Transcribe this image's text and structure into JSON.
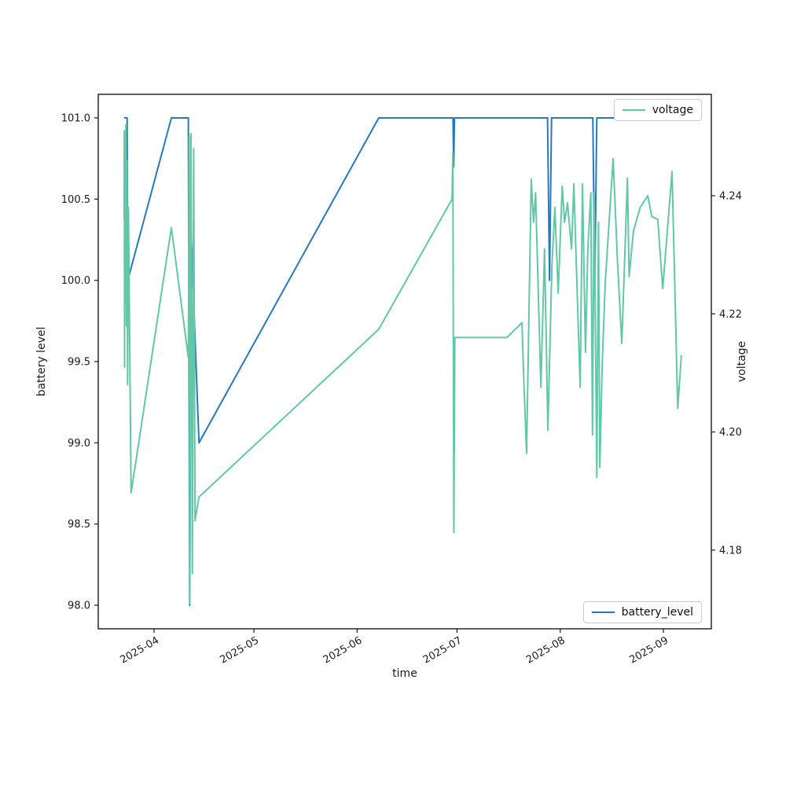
{
  "figure": {
    "kind": "matplotlib-line-figure",
    "background": "#ffffff"
  },
  "axes": {
    "x": {
      "label": "time",
      "min_day": -4.765,
      "max_day": 179.4,
      "ticks": [
        {
          "day": 12,
          "label": "2025-04"
        },
        {
          "day": 42,
          "label": "2025-05"
        },
        {
          "day": 73,
          "label": "2025-06"
        },
        {
          "day": 103,
          "label": "2025-07"
        },
        {
          "day": 134,
          "label": "2025-08"
        },
        {
          "day": 165,
          "label": "2025-09"
        }
      ]
    },
    "y_left": {
      "label": "battery level",
      "min": 97.855,
      "max": 101.145,
      "ticks": [
        {
          "v": 98.0,
          "label": "98.0"
        },
        {
          "v": 98.5,
          "label": "98.5"
        },
        {
          "v": 99.0,
          "label": "99.0"
        },
        {
          "v": 99.5,
          "label": "99.5"
        },
        {
          "v": 100.0,
          "label": "100.0"
        },
        {
          "v": 100.5,
          "label": "100.5"
        },
        {
          "v": 101.0,
          "label": "101.0"
        }
      ]
    },
    "y_right": {
      "label": "voltage",
      "min": 4.16668,
      "max": 4.25717,
      "ticks": [
        {
          "v": 4.18,
          "label": "4.18"
        },
        {
          "v": 4.2,
          "label": "4.20"
        },
        {
          "v": 4.22,
          "label": "4.22"
        },
        {
          "v": 4.24,
          "label": "4.24"
        }
      ]
    }
  },
  "legend_top": {
    "label": "voltage"
  },
  "legend_bottom": {
    "label": "battery_level"
  },
  "colors": {
    "battery": "#2b78b8",
    "voltage": "#63c6a6",
    "spine": "#1a1a1a"
  },
  "chart_data": {
    "type": "line",
    "title": "",
    "xlabel": "time",
    "ylabel_left": "battery level",
    "ylabel_right": "voltage",
    "x_unit": "days since 2025-03-20 (2025-04-01 = day 12)",
    "x_range_days": [
      3,
      171
    ],
    "legend_positions": {
      "voltage": "upper right",
      "battery_level": "lower right"
    },
    "grid": false,
    "series": [
      {
        "name": "battery_level",
        "axis": "left",
        "color": "#2b78b8",
        "points": [
          [
            3.0,
            101
          ],
          [
            3.9,
            101
          ],
          [
            4.1,
            100.0
          ],
          [
            17.2,
            101
          ],
          [
            22.3,
            101
          ],
          [
            22.7,
            98.0
          ],
          [
            23.1,
            100.3
          ],
          [
            25.5,
            99.0
          ],
          [
            79.5,
            101
          ],
          [
            101.8,
            101
          ],
          [
            102.0,
            100.7
          ],
          [
            102.25,
            101
          ],
          [
            130.2,
            101
          ],
          [
            130.8,
            100.0
          ],
          [
            131.4,
            101
          ],
          [
            143.8,
            101
          ],
          [
            144.4,
            100.0
          ],
          [
            145.0,
            101
          ],
          [
            171.0,
            101
          ]
        ]
      },
      {
        "name": "voltage",
        "axis": "right",
        "color": "#63c6a6",
        "points": [
          [
            3.0,
            4.236
          ],
          [
            3.05,
            4.251
          ],
          [
            3.15,
            4.211
          ],
          [
            3.25,
            4.249
          ],
          [
            3.4,
            4.222
          ],
          [
            3.55,
            4.252
          ],
          [
            3.7,
            4.218
          ],
          [
            3.85,
            4.246
          ],
          [
            4.05,
            4.208
          ],
          [
            4.3,
            4.238
          ],
          [
            5.1,
            4.1897
          ],
          [
            17.2,
            4.2346
          ],
          [
            22.3,
            4.2125
          ],
          [
            22.55,
            4.25
          ],
          [
            22.75,
            4.171
          ],
          [
            23.1,
            4.2505
          ],
          [
            23.5,
            4.176
          ],
          [
            23.9,
            4.248
          ],
          [
            24.3,
            4.185
          ],
          [
            25.5,
            4.189
          ],
          [
            79.5,
            4.2174
          ],
          [
            101.5,
            4.2394
          ],
          [
            101.75,
            4.2472
          ],
          [
            102.05,
            4.183
          ],
          [
            102.35,
            4.216
          ],
          [
            118,
            4.216
          ],
          [
            122.5,
            4.2185
          ],
          [
            123.0,
            4.21
          ],
          [
            123.9,
            4.1964
          ],
          [
            125.3,
            4.2428
          ],
          [
            126.0,
            4.2355
          ],
          [
            126.6,
            4.2405
          ],
          [
            128.2,
            4.2076
          ],
          [
            129.3,
            4.231
          ],
          [
            130.3,
            4.2003
          ],
          [
            131.5,
            4.228
          ],
          [
            132.4,
            4.238
          ],
          [
            133.4,
            4.2235
          ],
          [
            134.6,
            4.2416
          ],
          [
            135.3,
            4.2355
          ],
          [
            136.2,
            4.2388
          ],
          [
            137.4,
            4.231
          ],
          [
            138.1,
            4.242
          ],
          [
            139.0,
            4.2255
          ],
          [
            140.0,
            4.2076
          ],
          [
            140.7,
            4.242
          ],
          [
            141.6,
            4.2135
          ],
          [
            142.3,
            4.231
          ],
          [
            143.2,
            4.2405
          ],
          [
            143.7,
            4.1995
          ],
          [
            144.2,
            4.2405
          ],
          [
            145.0,
            4.1923
          ],
          [
            145.5,
            4.2355
          ],
          [
            145.9,
            4.194
          ],
          [
            146.6,
            4.211
          ],
          [
            147.5,
            4.225
          ],
          [
            149.9,
            4.2463
          ],
          [
            151.2,
            4.229
          ],
          [
            152.5,
            4.215
          ],
          [
            154.2,
            4.243
          ],
          [
            154.7,
            4.2263
          ],
          [
            156.0,
            4.234
          ],
          [
            158.0,
            4.238
          ],
          [
            160.3,
            4.24
          ],
          [
            161.5,
            4.2365
          ],
          [
            163.3,
            4.236
          ],
          [
            164.8,
            4.2243
          ],
          [
            167.6,
            4.2441
          ],
          [
            169.3,
            4.204
          ],
          [
            170.4,
            4.213
          ]
        ]
      }
    ]
  }
}
